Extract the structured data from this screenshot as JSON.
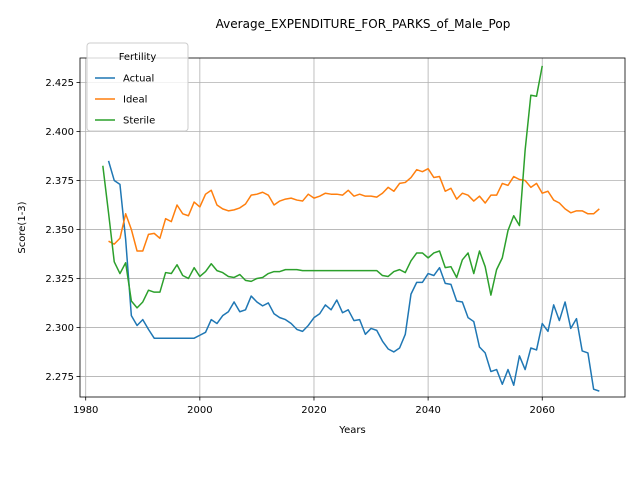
{
  "chart_data": {
    "type": "line",
    "title": "Average_EXPENDITURE_FOR_PARKS_of_Male_Pop",
    "xlabel": "Years",
    "ylabel": "Score(1-3)",
    "xlim": [
      1979,
      2074.5
    ],
    "ylim": [
      2.2645,
      2.4375
    ],
    "xticks": [
      1980,
      2000,
      2020,
      2040,
      2060
    ],
    "yticks": [
      2.275,
      2.3,
      2.325,
      2.35,
      2.375,
      2.4,
      2.425
    ],
    "ytick_labels": [
      "2.275",
      "2.300",
      "2.325",
      "2.350",
      "2.375",
      "2.400",
      "2.425"
    ],
    "grid": true,
    "legend": {
      "title": "Fertility",
      "placement": "upper-left"
    },
    "series": [
      {
        "name": "Actual",
        "color": "#1f77b4",
        "points": [
          [
            1984,
            2.385
          ],
          [
            1985,
            2.375
          ],
          [
            1986,
            2.373
          ],
          [
            1987,
            2.345
          ],
          [
            1988,
            2.306
          ],
          [
            1989,
            2.301
          ],
          [
            1990,
            2.304
          ],
          [
            1991,
            2.299
          ],
          [
            1992,
            2.2945
          ],
          [
            1993,
            2.2945
          ],
          [
            1994,
            2.2945
          ],
          [
            1995,
            2.2945
          ],
          [
            1996,
            2.2945
          ],
          [
            1997,
            2.2945
          ],
          [
            1998,
            2.2945
          ],
          [
            1999,
            2.2945
          ],
          [
            2000,
            2.296
          ],
          [
            2001,
            2.2975
          ],
          [
            2002,
            2.304
          ],
          [
            2003,
            2.302
          ],
          [
            2004,
            2.306
          ],
          [
            2005,
            2.308
          ],
          [
            2006,
            2.313
          ],
          [
            2007,
            2.308
          ],
          [
            2008,
            2.309
          ],
          [
            2009,
            2.316
          ],
          [
            2010,
            2.313
          ],
          [
            2011,
            2.311
          ],
          [
            2012,
            2.3125
          ],
          [
            2013,
            2.307
          ],
          [
            2014,
            2.305
          ],
          [
            2015,
            2.304
          ],
          [
            2016,
            2.302
          ],
          [
            2017,
            2.299
          ],
          [
            2018,
            2.298
          ],
          [
            2019,
            2.301
          ],
          [
            2020,
            2.305
          ],
          [
            2021,
            2.307
          ],
          [
            2022,
            2.3115
          ],
          [
            2023,
            2.309
          ],
          [
            2024,
            2.314
          ],
          [
            2025,
            2.3075
          ],
          [
            2026,
            2.309
          ],
          [
            2027,
            2.3035
          ],
          [
            2028,
            2.304
          ],
          [
            2029,
            2.2965
          ],
          [
            2030,
            2.2995
          ],
          [
            2031,
            2.2985
          ],
          [
            2032,
            2.293
          ],
          [
            2033,
            2.289
          ],
          [
            2034,
            2.2875
          ],
          [
            2035,
            2.2895
          ],
          [
            2036,
            2.2965
          ],
          [
            2037,
            2.317
          ],
          [
            2038,
            2.323
          ],
          [
            2039,
            2.323
          ],
          [
            2040,
            2.3275
          ],
          [
            2041,
            2.3265
          ],
          [
            2042,
            2.3305
          ],
          [
            2043,
            2.3225
          ],
          [
            2044,
            2.322
          ],
          [
            2045,
            2.3135
          ],
          [
            2046,
            2.313
          ],
          [
            2047,
            2.305
          ],
          [
            2048,
            2.303
          ],
          [
            2049,
            2.29
          ],
          [
            2050,
            2.287
          ],
          [
            2051,
            2.2775
          ],
          [
            2052,
            2.2785
          ],
          [
            2053,
            2.271
          ],
          [
            2054,
            2.2785
          ],
          [
            2055,
            2.2705
          ],
          [
            2056,
            2.2855
          ],
          [
            2057,
            2.2785
          ],
          [
            2058,
            2.2895
          ],
          [
            2059,
            2.2885
          ],
          [
            2060,
            2.302
          ],
          [
            2061,
            2.298
          ],
          [
            2062,
            2.3115
          ],
          [
            2063,
            2.3035
          ],
          [
            2064,
            2.313
          ],
          [
            2065,
            2.2995
          ],
          [
            2066,
            2.3045
          ],
          [
            2067,
            2.288
          ],
          [
            2068,
            2.287
          ],
          [
            2069,
            2.2685
          ],
          [
            2070,
            2.2675
          ]
        ]
      },
      {
        "name": "Ideal",
        "color": "#ff7f0e",
        "points": [
          [
            1984,
            2.344
          ],
          [
            1985,
            2.3425
          ],
          [
            1986,
            2.3455
          ],
          [
            1987,
            2.358
          ],
          [
            1988,
            2.35
          ],
          [
            1989,
            2.339
          ],
          [
            1990,
            2.339
          ],
          [
            1991,
            2.3475
          ],
          [
            1992,
            2.348
          ],
          [
            1993,
            2.3455
          ],
          [
            1994,
            2.3555
          ],
          [
            1995,
            2.354
          ],
          [
            1996,
            2.3625
          ],
          [
            1997,
            2.358
          ],
          [
            1998,
            2.357
          ],
          [
            1999,
            2.364
          ],
          [
            2000,
            2.3615
          ],
          [
            2001,
            2.368
          ],
          [
            2002,
            2.37
          ],
          [
            2003,
            2.3625
          ],
          [
            2004,
            2.3605
          ],
          [
            2005,
            2.3595
          ],
          [
            2006,
            2.36
          ],
          [
            2007,
            2.361
          ],
          [
            2008,
            2.363
          ],
          [
            2009,
            2.3675
          ],
          [
            2010,
            2.368
          ],
          [
            2011,
            2.369
          ],
          [
            2012,
            2.3675
          ],
          [
            2013,
            2.3625
          ],
          [
            2014,
            2.3645
          ],
          [
            2015,
            2.3655
          ],
          [
            2016,
            2.366
          ],
          [
            2017,
            2.365
          ],
          [
            2018,
            2.3645
          ],
          [
            2019,
            2.368
          ],
          [
            2020,
            2.366
          ],
          [
            2021,
            2.367
          ],
          [
            2022,
            2.3685
          ],
          [
            2023,
            2.368
          ],
          [
            2024,
            2.368
          ],
          [
            2025,
            2.3675
          ],
          [
            2026,
            2.37
          ],
          [
            2027,
            2.367
          ],
          [
            2028,
            2.368
          ],
          [
            2029,
            2.367
          ],
          [
            2030,
            2.367
          ],
          [
            2031,
            2.3665
          ],
          [
            2032,
            2.3685
          ],
          [
            2033,
            2.3715
          ],
          [
            2034,
            2.3695
          ],
          [
            2035,
            2.3735
          ],
          [
            2036,
            2.374
          ],
          [
            2037,
            2.3765
          ],
          [
            2038,
            2.3805
          ],
          [
            2039,
            2.3795
          ],
          [
            2040,
            2.381
          ],
          [
            2041,
            2.3765
          ],
          [
            2042,
            2.377
          ],
          [
            2043,
            2.3695
          ],
          [
            2044,
            2.371
          ],
          [
            2045,
            2.3655
          ],
          [
            2046,
            2.3685
          ],
          [
            2047,
            2.3675
          ],
          [
            2048,
            2.3645
          ],
          [
            2049,
            2.367
          ],
          [
            2050,
            2.3635
          ],
          [
            2051,
            2.3675
          ],
          [
            2052,
            2.3675
          ],
          [
            2053,
            2.3735
          ],
          [
            2054,
            2.3725
          ],
          [
            2055,
            2.377
          ],
          [
            2056,
            2.3755
          ],
          [
            2057,
            2.375
          ],
          [
            2058,
            2.3715
          ],
          [
            2059,
            2.3735
          ],
          [
            2060,
            2.3685
          ],
          [
            2061,
            2.3695
          ],
          [
            2062,
            2.365
          ],
          [
            2063,
            2.3635
          ],
          [
            2064,
            2.3605
          ],
          [
            2065,
            2.3585
          ],
          [
            2066,
            2.3595
          ],
          [
            2067,
            2.3595
          ],
          [
            2068,
            2.358
          ],
          [
            2069,
            2.358
          ],
          [
            2070,
            2.3605
          ]
        ]
      },
      {
        "name": "Sterile",
        "color": "#2ca02c",
        "points": [
          [
            1983,
            2.3825
          ],
          [
            1984,
            2.3585
          ],
          [
            1985,
            2.3335
          ],
          [
            1986,
            2.3275
          ],
          [
            1987,
            2.333
          ],
          [
            1988,
            2.3135
          ],
          [
            1989,
            2.31
          ],
          [
            1990,
            2.313
          ],
          [
            1991,
            2.319
          ],
          [
            1992,
            2.318
          ],
          [
            1993,
            2.318
          ],
          [
            1994,
            2.328
          ],
          [
            1995,
            2.3275
          ],
          [
            1996,
            2.332
          ],
          [
            1997,
            2.3265
          ],
          [
            1998,
            2.325
          ],
          [
            1999,
            2.3305
          ],
          [
            2000,
            2.326
          ],
          [
            2001,
            2.3285
          ],
          [
            2002,
            2.3325
          ],
          [
            2003,
            2.329
          ],
          [
            2004,
            2.328
          ],
          [
            2005,
            2.326
          ],
          [
            2006,
            2.3255
          ],
          [
            2007,
            2.327
          ],
          [
            2008,
            2.324
          ],
          [
            2009,
            2.3235
          ],
          [
            2010,
            2.325
          ],
          [
            2011,
            2.3255
          ],
          [
            2012,
            2.3275
          ],
          [
            2013,
            2.3285
          ],
          [
            2014,
            2.3285
          ],
          [
            2015,
            2.3295
          ],
          [
            2016,
            2.3295
          ],
          [
            2017,
            2.3295
          ],
          [
            2018,
            2.329
          ],
          [
            2019,
            2.329
          ],
          [
            2020,
            2.329
          ],
          [
            2021,
            2.329
          ],
          [
            2022,
            2.329
          ],
          [
            2023,
            2.329
          ],
          [
            2024,
            2.329
          ],
          [
            2025,
            2.329
          ],
          [
            2026,
            2.329
          ],
          [
            2027,
            2.329
          ],
          [
            2028,
            2.329
          ],
          [
            2029,
            2.329
          ],
          [
            2030,
            2.329
          ],
          [
            2031,
            2.329
          ],
          [
            2032,
            2.3265
          ],
          [
            2033,
            2.326
          ],
          [
            2034,
            2.3285
          ],
          [
            2035,
            2.3295
          ],
          [
            2036,
            2.328
          ],
          [
            2037,
            2.334
          ],
          [
            2038,
            2.338
          ],
          [
            2039,
            2.338
          ],
          [
            2040,
            2.3355
          ],
          [
            2041,
            2.338
          ],
          [
            2042,
            2.339
          ],
          [
            2043,
            2.3305
          ],
          [
            2044,
            2.331
          ],
          [
            2045,
            2.3255
          ],
          [
            2046,
            2.3345
          ],
          [
            2047,
            2.338
          ],
          [
            2048,
            2.3275
          ],
          [
            2049,
            2.339
          ],
          [
            2050,
            2.331
          ],
          [
            2051,
            2.3165
          ],
          [
            2052,
            2.3295
          ],
          [
            2053,
            2.3355
          ],
          [
            2054,
            2.3495
          ],
          [
            2055,
            2.357
          ],
          [
            2056,
            2.352
          ],
          [
            2057,
            2.3905
          ],
          [
            2058,
            2.4185
          ],
          [
            2059,
            2.418
          ],
          [
            2060,
            2.4335
          ]
        ]
      }
    ]
  }
}
